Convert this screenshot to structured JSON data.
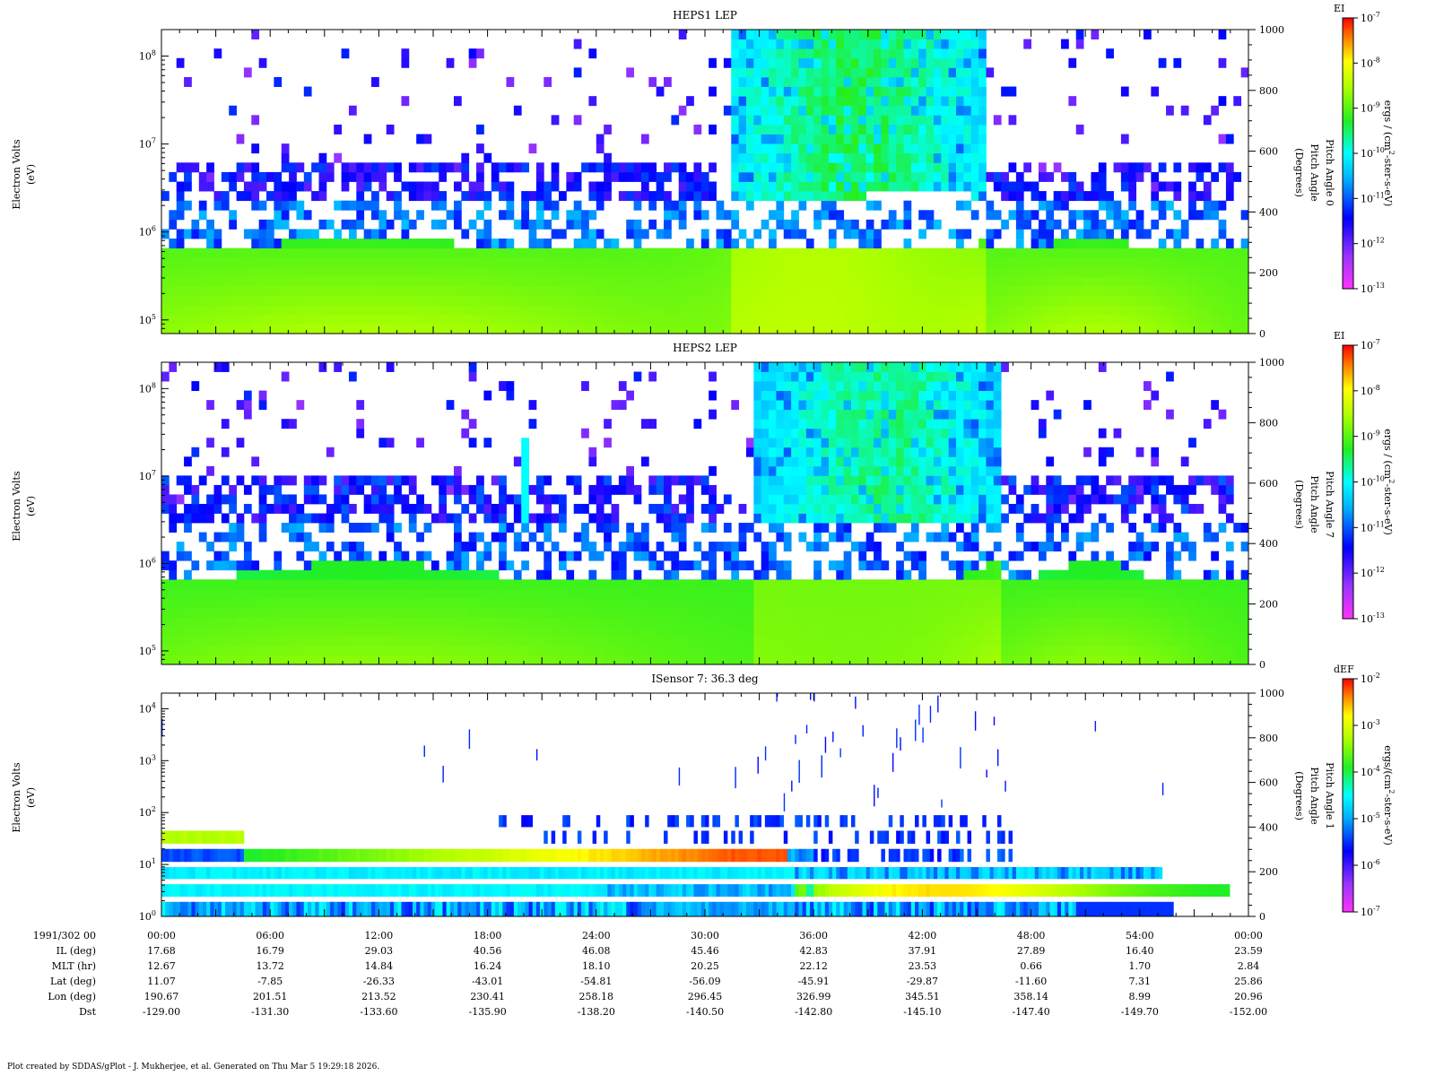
{
  "footer": "Plot created by SDDAS/gPlot - J. Mukherjee, et al.  Generated on Thu Mar 5 19:29:18 2026.",
  "chart_data": [
    {
      "type": "heatmap",
      "title": "HEPS1 LEP",
      "ylabel": "Electron Volts",
      "yunit": "(eV)",
      "yscale": "log",
      "ylim": [
        70000,
        200000000
      ],
      "yticks": [
        {
          "label": "10",
          "exp": "5"
        },
        {
          "label": "10",
          "exp": "6"
        },
        {
          "label": "10",
          "exp": "7"
        },
        {
          "label": "10",
          "exp": "8"
        }
      ],
      "right_ylabel": [
        "Pitch Angle 0",
        "Pitch Angle",
        "(Degrees)"
      ],
      "right_ylim": [
        0,
        1000
      ],
      "right_ticks": [
        "0",
        "200",
        "400",
        "600",
        "800",
        "1000"
      ],
      "colorbar": {
        "name": "EI",
        "unit_lines": [
          "ergs / (cm",
          "2",
          "-ster-s-eV)"
        ],
        "ticks": [
          {
            "label": "10",
            "exp": "-7"
          },
          {
            "label": "10",
            "exp": "-8"
          },
          {
            "label": "10",
            "exp": "-9"
          },
          {
            "label": "10",
            "exp": "-10"
          },
          {
            "label": "10",
            "exp": "-11"
          },
          {
            "label": "10",
            "exp": "-12"
          },
          {
            "label": "10",
            "exp": "-13"
          }
        ]
      },
      "grid": false
    },
    {
      "type": "heatmap",
      "title": "HEPS2 LEP",
      "ylabel": "Electron Volts",
      "yunit": "(eV)",
      "yscale": "log",
      "ylim": [
        70000,
        200000000
      ],
      "yticks": [
        {
          "label": "10",
          "exp": "5"
        },
        {
          "label": "10",
          "exp": "6"
        },
        {
          "label": "10",
          "exp": "7"
        },
        {
          "label": "10",
          "exp": "8"
        }
      ],
      "right_ylabel": [
        "Pitch Angle 7",
        "Pitch Angle",
        "(Degrees)"
      ],
      "right_ylim": [
        0,
        1000
      ],
      "right_ticks": [
        "0",
        "200",
        "400",
        "600",
        "800",
        "1000"
      ],
      "colorbar": {
        "name": "EI",
        "unit_lines": [
          "ergs / (cm",
          "2",
          "-ster-s-eV)"
        ],
        "ticks": [
          {
            "label": "10",
            "exp": "-7"
          },
          {
            "label": "10",
            "exp": "-8"
          },
          {
            "label": "10",
            "exp": "-9"
          },
          {
            "label": "10",
            "exp": "-10"
          },
          {
            "label": "10",
            "exp": "-11"
          },
          {
            "label": "10",
            "exp": "-12"
          },
          {
            "label": "10",
            "exp": "-13"
          }
        ]
      },
      "grid": false
    },
    {
      "type": "heatmap",
      "title": "ISensor 7: 36.3 deg",
      "ylabel": "Electron Volts",
      "yunit": "(eV)",
      "yscale": "log",
      "ylim": [
        1,
        20000
      ],
      "yticks": [
        {
          "label": "10",
          "exp": "0"
        },
        {
          "label": "10",
          "exp": "1"
        },
        {
          "label": "10",
          "exp": "2"
        },
        {
          "label": "10",
          "exp": "3"
        },
        {
          "label": "10",
          "exp": "4"
        }
      ],
      "right_ylabel": [
        "Pitch Angle 1",
        "Pitch Angle",
        "(Degrees)"
      ],
      "right_ylim": [
        0,
        1000
      ],
      "right_ticks": [
        "0",
        "200",
        "400",
        "600",
        "800",
        "1000"
      ],
      "colorbar": {
        "name": "dEF",
        "unit_lines": [
          "ergs/(cm",
          "2",
          "-ster-s-eV)"
        ],
        "ticks": [
          {
            "label": "10",
            "exp": "-2"
          },
          {
            "label": "10",
            "exp": "-3"
          },
          {
            "label": "10",
            "exp": "-4"
          },
          {
            "label": "10",
            "exp": "-5"
          },
          {
            "label": "10",
            "exp": "-6"
          },
          {
            "label": "10",
            "exp": "-7"
          }
        ]
      },
      "grid": false
    }
  ],
  "x_axis": {
    "row_labels": [
      "1991/302 00",
      "IL (deg)",
      "MLT (hr)",
      "Lat (deg)",
      "Lon (deg)",
      "Dst"
    ],
    "columns": [
      {
        "time": "00:00",
        "il": "17.68",
        "mlt": "12.67",
        "lat": "11.07",
        "lon": "190.67",
        "dst": "-129.00"
      },
      {
        "time": "06:00",
        "il": "16.79",
        "mlt": "13.72",
        "lat": "-7.85",
        "lon": "201.51",
        "dst": "-131.30"
      },
      {
        "time": "12:00",
        "il": "29.03",
        "mlt": "14.84",
        "lat": "-26.33",
        "lon": "213.52",
        "dst": "-133.60"
      },
      {
        "time": "18:00",
        "il": "40.56",
        "mlt": "16.24",
        "lat": "-43.01",
        "lon": "230.41",
        "dst": "-135.90"
      },
      {
        "time": "24:00",
        "il": "46.08",
        "mlt": "18.10",
        "lat": "-54.81",
        "lon": "258.18",
        "dst": "-138.20"
      },
      {
        "time": "30:00",
        "il": "45.46",
        "mlt": "20.25",
        "lat": "-56.09",
        "lon": "296.45",
        "dst": "-140.50"
      },
      {
        "time": "36:00",
        "il": "42.83",
        "mlt": "22.12",
        "lat": "-45.91",
        "lon": "326.99",
        "dst": "-142.80"
      },
      {
        "time": "42:00",
        "il": "37.91",
        "mlt": "23.53",
        "lat": "-29.87",
        "lon": "345.51",
        "dst": "-145.10"
      },
      {
        "time": "48:00",
        "il": "27.89",
        "mlt": "0.66",
        "lat": "-11.60",
        "lon": "358.14",
        "dst": "-147.40"
      },
      {
        "time": "54:00",
        "il": "16.40",
        "mlt": "1.70",
        "lat": "7.31",
        "lon": "8.99",
        "dst": "-149.70"
      },
      {
        "time": "00:00",
        "il": "23.59",
        "mlt": "2.84",
        "lat": "25.86",
        "lon": "20.96",
        "dst": "-152.00"
      }
    ]
  }
}
